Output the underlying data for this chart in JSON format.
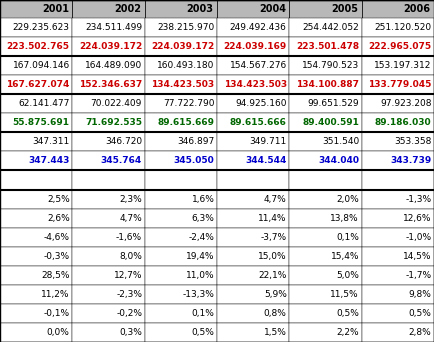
{
  "headers": [
    "2001",
    "2002",
    "2003",
    "2004",
    "2005",
    "2006"
  ],
  "rows": [
    {
      "values": [
        "229.235.623",
        "234.511.499",
        "238.215.970",
        "249.492.436",
        "254.442.052",
        "251.120.520"
      ],
      "color": "black",
      "bold": false
    },
    {
      "values": [
        "223.502.765",
        "224.039.172",
        "224.039.172",
        "224.039.169",
        "223.501.478",
        "222.965.075"
      ],
      "color": "#cc0000",
      "bold": true
    },
    {
      "values": [
        "167.094.146",
        "164.489.090",
        "160.493.180",
        "154.567.276",
        "154.790.523",
        "153.197.312"
      ],
      "color": "black",
      "bold": false
    },
    {
      "values": [
        "167.627.074",
        "152.346.637",
        "134.423.503",
        "134.423.503",
        "134.100.887",
        "133.779.045"
      ],
      "color": "#cc0000",
      "bold": true
    },
    {
      "values": [
        "62.141.477",
        "70.022.409",
        "77.722.790",
        "94.925.160",
        "99.651.529",
        "97.923.208"
      ],
      "color": "black",
      "bold": false
    },
    {
      "values": [
        "55.875.691",
        "71.692.535",
        "89.615.669",
        "89.615.666",
        "89.400.591",
        "89.186.030"
      ],
      "color": "#006600",
      "bold": true
    },
    {
      "values": [
        "347.311",
        "346.720",
        "346.897",
        "349.711",
        "351.540",
        "353.358"
      ],
      "color": "black",
      "bold": false
    },
    {
      "values": [
        "347.443",
        "345.764",
        "345.050",
        "344.544",
        "344.040",
        "343.739"
      ],
      "color": "#0000cc",
      "bold": true
    },
    {
      "values": [
        "",
        "",
        "",
        "",
        "",
        ""
      ],
      "color": "black",
      "bold": false
    },
    {
      "values": [
        "2,5%",
        "2,3%",
        "1,6%",
        "4,7%",
        "2,0%",
        "-1,3%"
      ],
      "color": "black",
      "bold": false
    },
    {
      "values": [
        "2,6%",
        "4,7%",
        "6,3%",
        "11,4%",
        "13,8%",
        "12,6%"
      ],
      "color": "black",
      "bold": false
    },
    {
      "values": [
        "-4,6%",
        "-1,6%",
        "-2,4%",
        "-3,7%",
        "0,1%",
        "-1,0%"
      ],
      "color": "black",
      "bold": false
    },
    {
      "values": [
        "-0,3%",
        "8,0%",
        "19,4%",
        "15,0%",
        "15,4%",
        "14,5%"
      ],
      "color": "black",
      "bold": false
    },
    {
      "values": [
        "28,5%",
        "12,7%",
        "11,0%",
        "22,1%",
        "5,0%",
        "-1,7%"
      ],
      "color": "black",
      "bold": false
    },
    {
      "values": [
        "11,2%",
        "-2,3%",
        "-13,3%",
        "5,9%",
        "11,5%",
        "9,8%"
      ],
      "color": "black",
      "bold": false
    },
    {
      "values": [
        "-0,1%",
        "-0,2%",
        "0,1%",
        "0,8%",
        "0,5%",
        "0,5%"
      ],
      "color": "black",
      "bold": false
    },
    {
      "values": [
        "0,0%",
        "0,3%",
        "0,5%",
        "1,5%",
        "2,2%",
        "2,8%"
      ],
      "color": "black",
      "bold": false
    }
  ],
  "thick_bottom_rows": [
    1,
    3,
    5,
    7,
    8
  ],
  "header_bg": "#b8b8b8",
  "cell_bg": "#ffffff",
  "figsize": [
    4.34,
    3.42
  ],
  "dpi": 100
}
